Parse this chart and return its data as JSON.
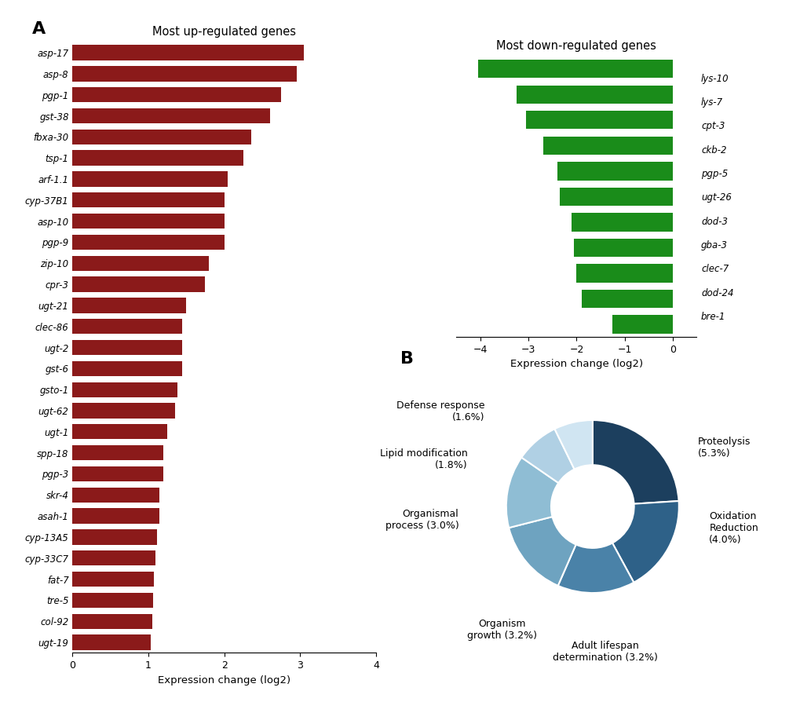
{
  "up_genes": [
    "asp-17",
    "asp-8",
    "pgp-1",
    "gst-38",
    "fbxa-30",
    "tsp-1",
    "arf-1.1",
    "cyp-37B1",
    "asp-10",
    "pgp-9",
    "zip-10",
    "cpr-3",
    "ugt-21",
    "clec-86",
    "ugt-2",
    "gst-6",
    "gsto-1",
    "ugt-62",
    "ugt-1",
    "spp-18",
    "pgp-3",
    "skr-4",
    "asah-1",
    "cyp-13A5",
    "cyp-33C7",
    "fat-7",
    "tre-5",
    "col-92",
    "ugt-19"
  ],
  "up_values": [
    3.05,
    2.95,
    2.75,
    2.6,
    2.35,
    2.25,
    2.05,
    2.0,
    2.0,
    2.0,
    1.8,
    1.75,
    1.5,
    1.45,
    1.45,
    1.45,
    1.38,
    1.35,
    1.25,
    1.2,
    1.2,
    1.15,
    1.15,
    1.12,
    1.1,
    1.08,
    1.07,
    1.05,
    1.03
  ],
  "down_genes": [
    "lys-10",
    "lys-7",
    "cpt-3",
    "ckb-2",
    "pgp-5",
    "ugt-26",
    "dod-3",
    "gba-3",
    "clec-7",
    "dod-24",
    "bre-1"
  ],
  "down_values": [
    -4.05,
    -3.25,
    -3.05,
    -2.7,
    -2.4,
    -2.35,
    -2.1,
    -2.05,
    -2.0,
    -1.9,
    -1.25
  ],
  "up_color": "#8B1A1A",
  "down_color": "#1a8c1a",
  "pie_values": [
    5.3,
    4.0,
    3.2,
    3.2,
    3.0,
    1.8,
    1.6
  ],
  "pie_colors": [
    "#1c3f5e",
    "#2e6188",
    "#4a82a8",
    "#6ea3c0",
    "#8fbdd4",
    "#b0d0e4",
    "#d0e5f2"
  ],
  "background": "#ffffff"
}
